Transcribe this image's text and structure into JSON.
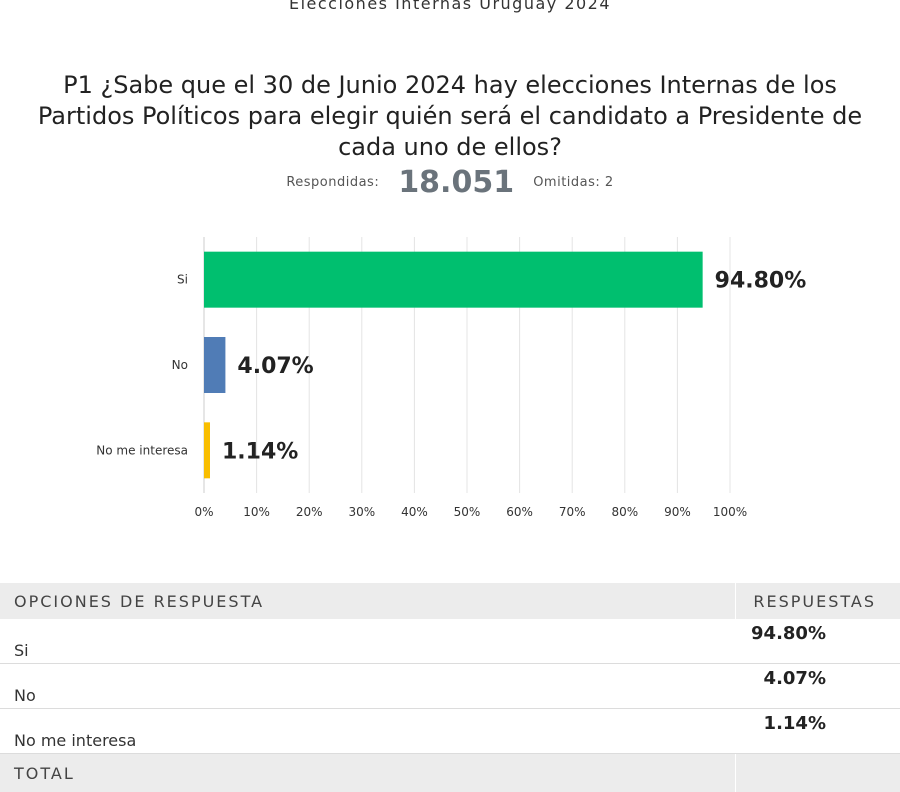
{
  "header": {
    "title": "Elecciones Internas Uruguay 2024"
  },
  "question": "P1 ¿Sabe que el 30 de Junio 2024 hay elecciones Internas de los Partidos Políticos para elegir quién será el candidato a Presidente de cada uno de ellos?",
  "stats": {
    "answered_label": "Respondidas:",
    "answered_value": "18.051",
    "skipped_label": "Omitidas: 2"
  },
  "chart_data": {
    "type": "bar",
    "orientation": "horizontal",
    "categories": [
      "Si",
      "No",
      "No me interesa"
    ],
    "values": [
      94.8,
      4.07,
      1.14
    ],
    "value_labels": [
      "94.80%",
      "4.07%",
      "1.14%"
    ],
    "colors": [
      "#00bf6f",
      "#507cb6",
      "#f9be00"
    ],
    "xlim": [
      0,
      100
    ],
    "ticks": [
      "0%",
      "10%",
      "20%",
      "30%",
      "40%",
      "50%",
      "60%",
      "70%",
      "80%",
      "90%",
      "100%"
    ],
    "grid": true
  },
  "table": {
    "header_left": "OPCIONES DE RESPUESTA",
    "header_right": "RESPUESTAS",
    "rows": [
      {
        "label": "Si",
        "value": "94.80%"
      },
      {
        "label": "No",
        "value": "4.07%"
      },
      {
        "label": "No me interesa",
        "value": "1.14%"
      }
    ],
    "total_label": "TOTAL"
  }
}
